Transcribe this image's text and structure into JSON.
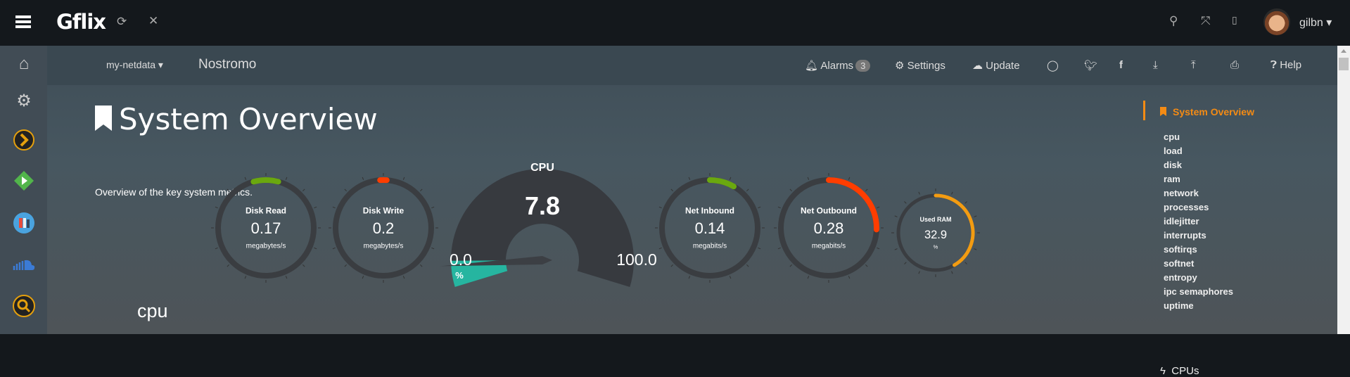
{
  "topbar": {
    "brand": "Gflix",
    "user": "gilbn",
    "icons": [
      "menu-icon",
      "refresh-icon",
      "close-icon",
      "search-icon",
      "fullscreen-icon",
      "translate-icon",
      "avatar"
    ]
  },
  "sidebar": {
    "icons": [
      "home-icon",
      "gear-icon",
      "plex-icon",
      "emby-icon",
      "books-icon",
      "soundcloud-icon",
      "search-icon"
    ],
    "colors": {
      "plex": "#e5a00d",
      "emby": "#52b54b",
      "search": "#e5a00d"
    }
  },
  "nav": {
    "server": "my-netdata",
    "host": "Nostromo",
    "alarms": "Alarms",
    "alarms_count": "3",
    "settings": "Settings",
    "update": "Update",
    "help": "Help"
  },
  "page": {
    "title": "System Overview",
    "description": "Overview of the key system metrics.",
    "section": "cpu"
  },
  "gauges": [
    {
      "title": "Disk Read",
      "value": "0.17",
      "unit": "megabytes/s",
      "color": "#6aa80f",
      "arc": [
        -15,
        15
      ]
    },
    {
      "title": "Disk Write",
      "value": "0.2",
      "unit": "megabytes/s",
      "color": "#ff3d00",
      "arc": [
        -4,
        4
      ]
    },
    {
      "title": "Net Inbound",
      "value": "0.14",
      "unit": "megabits/s",
      "color": "#6aa80f",
      "arc": [
        0,
        30
      ]
    },
    {
      "title": "Net Outbound",
      "value": "0.28",
      "unit": "megabits/s",
      "color": "#ff3d00",
      "arc": [
        0,
        92
      ]
    },
    {
      "title": "Used RAM",
      "value": "32.9",
      "unit": "%",
      "color": "#f39c12",
      "arc": [
        0,
        150
      ]
    }
  ],
  "cpu_gauge": {
    "title": "CPU",
    "value": "7.8",
    "min": "0.0",
    "max": "100.0",
    "unit": "%",
    "percent": 7.8,
    "color": "#26b5a0"
  },
  "toc": {
    "header": "System Overview",
    "items": [
      "cpu",
      "load",
      "disk",
      "ram",
      "network",
      "processes",
      "idlejitter",
      "interrupts",
      "softirqs",
      "softnet",
      "entropy",
      "ipc semaphores",
      "uptime"
    ],
    "next": "CPUs"
  }
}
